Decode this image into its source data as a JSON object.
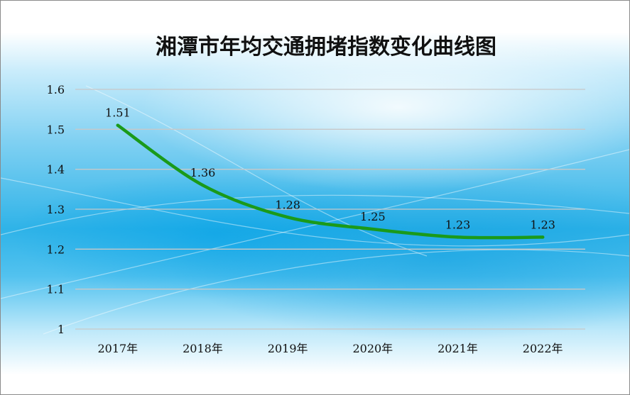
{
  "chart_data": {
    "type": "line",
    "title": "湘潭市年均交通拥堵指数变化曲线图",
    "categories": [
      "2017年",
      "2018年",
      "2019年",
      "2020年",
      "2021年",
      "2022年"
    ],
    "series": [
      {
        "values": [
          1.51,
          1.36,
          1.28,
          1.25,
          1.23,
          1.23
        ],
        "color": "#1a9a1a"
      }
    ],
    "data_labels": [
      "1.51",
      "1.36",
      "1.28",
      "1.25",
      "1.23",
      "1.23"
    ],
    "y_ticks": [
      "1",
      "1.1",
      "1.2",
      "1.3",
      "1.4",
      "1.5",
      "1.6"
    ],
    "ylim": [
      1,
      1.6
    ],
    "grid": true,
    "legend": "none",
    "colors": {
      "line": "#1a9a1a",
      "gridline": "#c8c8c8"
    }
  }
}
